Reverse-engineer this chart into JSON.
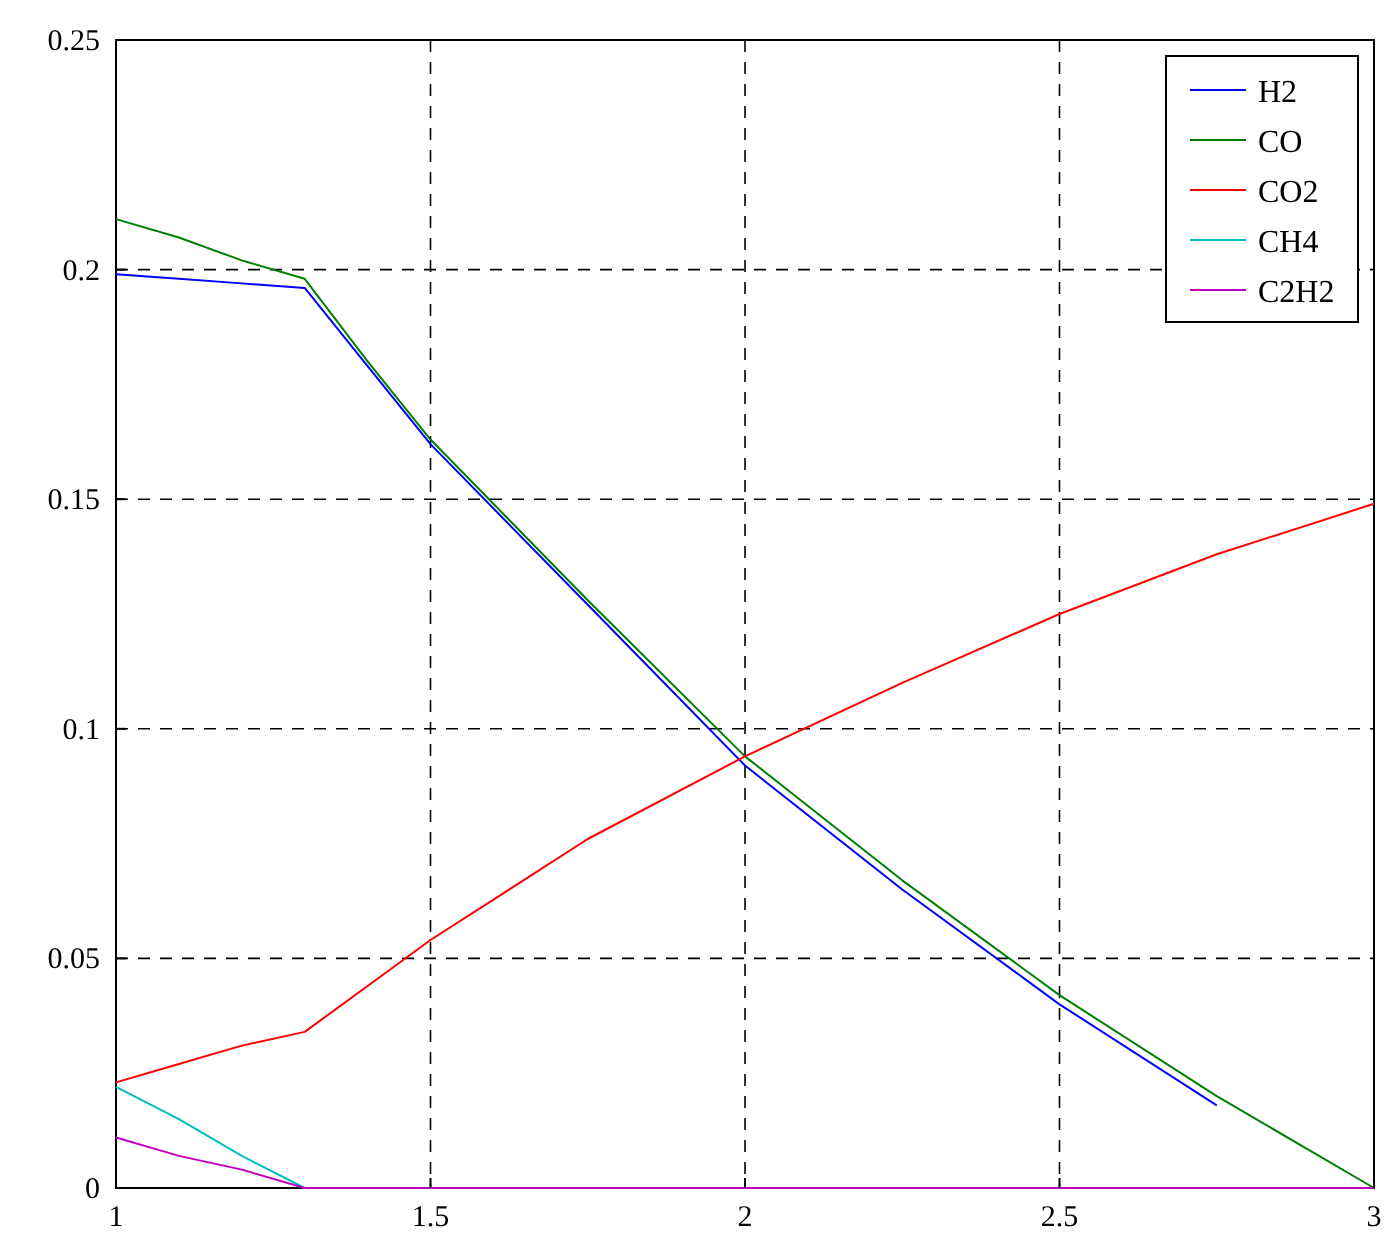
{
  "chart_data": {
    "type": "line",
    "xlim": [
      1,
      3
    ],
    "ylim": [
      0,
      0.25
    ],
    "xticks": [
      1,
      1.5,
      2,
      2.5,
      3
    ],
    "yticks": [
      0,
      0.05,
      0.1,
      0.15,
      0.2,
      0.25
    ],
    "grid": true,
    "legend": "top right",
    "line_style": "solid",
    "marker": "none",
    "x": [
      1,
      1.1,
      1.2,
      1.3,
      1.4,
      1.5,
      1.75,
      2,
      2.25,
      2.5,
      2.75,
      3
    ],
    "series": [
      {
        "name": "H2",
        "color": "#0000ff",
        "values": [
          0.199,
          0.198,
          0.197,
          0.196,
          0.179,
          0.162,
          0.127,
          0.092,
          0.065,
          0.04,
          0.018,
          null
        ]
      },
      {
        "name": "CO",
        "color": "#008000",
        "values": [
          0.211,
          0.207,
          0.202,
          0.198,
          0.18,
          0.163,
          0.128,
          0.094,
          0.067,
          0.042,
          0.02,
          0.0
        ]
      },
      {
        "name": "CO2",
        "color": "#ff0000",
        "values": [
          0.023,
          0.027,
          0.031,
          0.034,
          0.044,
          0.054,
          0.076,
          0.094,
          0.11,
          0.125,
          0.138,
          0.149
        ]
      },
      {
        "name": "CH4",
        "color": "#00bfbf",
        "values": [
          0.022,
          0.015,
          0.007,
          0.0,
          null,
          null,
          null,
          null,
          null,
          null,
          null,
          null
        ]
      },
      {
        "name": "C2H2",
        "color": "#bf00bf",
        "values": [
          0.011,
          0.007,
          0.004,
          0.0,
          0,
          0,
          0,
          0,
          0,
          0,
          0,
          0
        ]
      }
    ]
  }
}
